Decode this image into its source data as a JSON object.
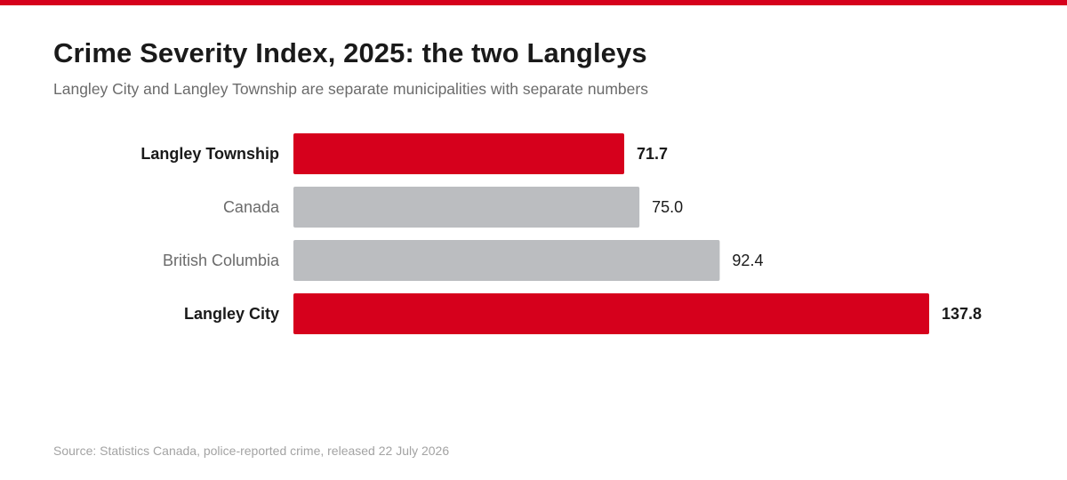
{
  "title": "Crime Severity Index, 2025: the two Langleys",
  "subtitle": "Langley City and Langley Township are separate municipalities with separate numbers",
  "source": "Source: Statistics Canada, police-reported crime, released 22 July 2026",
  "colors": {
    "accent": "#d6001c",
    "neutral": "#bbbdc0",
    "label_strong": "#1a1a1a",
    "label_muted": "#6b6b6b"
  },
  "chart_data": {
    "type": "bar",
    "orientation": "horizontal",
    "categories": [
      "Langley Township",
      "Canada",
      "British Columbia",
      "Langley City"
    ],
    "values": [
      71.7,
      75.0,
      92.4,
      137.8
    ],
    "value_labels": [
      "71.7",
      "75.0",
      "92.4",
      "137.8"
    ],
    "highlighted": [
      true,
      false,
      false,
      true
    ],
    "title": "Crime Severity Index, 2025: the two Langleys",
    "xlabel": "",
    "ylabel": "",
    "xlim": [
      0,
      137.8
    ],
    "grid": false,
    "legend": "none"
  }
}
